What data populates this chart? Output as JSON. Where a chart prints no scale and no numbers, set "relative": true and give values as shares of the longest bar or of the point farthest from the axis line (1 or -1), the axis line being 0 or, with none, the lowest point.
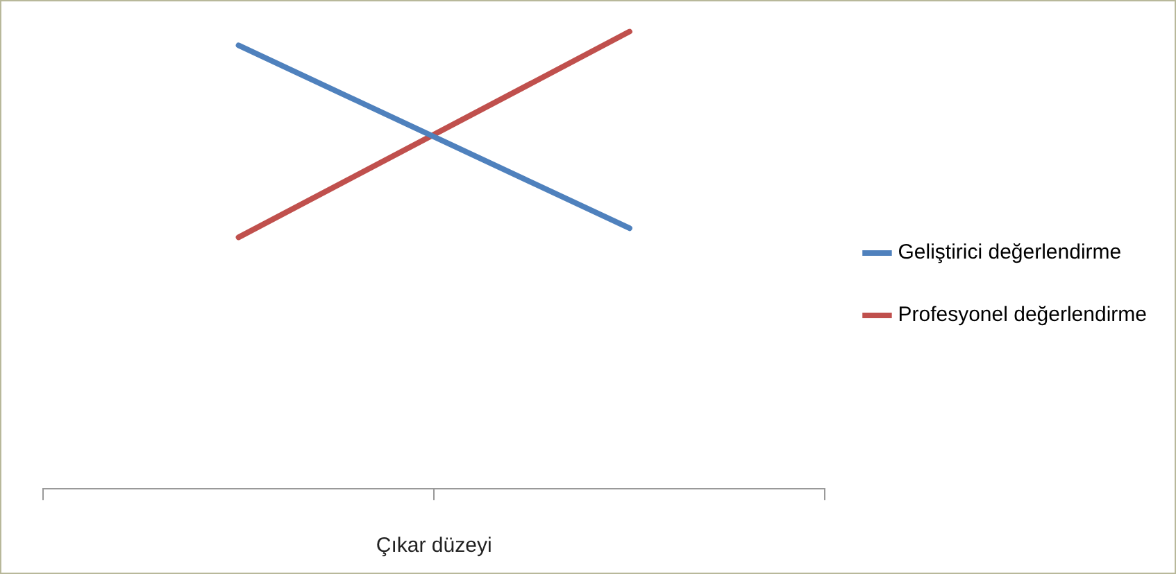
{
  "chart_data": {
    "type": "line",
    "xlabel": "Çıkar düzeyi",
    "categories": [
      null,
      null
    ],
    "relative": true,
    "legend": "right",
    "grid": false,
    "marker": "none",
    "line_style": "solid",
    "series": [
      {
        "name": "Geliştirici değerlendirme",
        "color": "#4f81bd",
        "values": [
          0.97,
          0.57
        ]
      },
      {
        "name": "Profesyonel değerlendirme",
        "color": "#c0504d",
        "values": [
          0.55,
          1
        ]
      }
    ]
  }
}
